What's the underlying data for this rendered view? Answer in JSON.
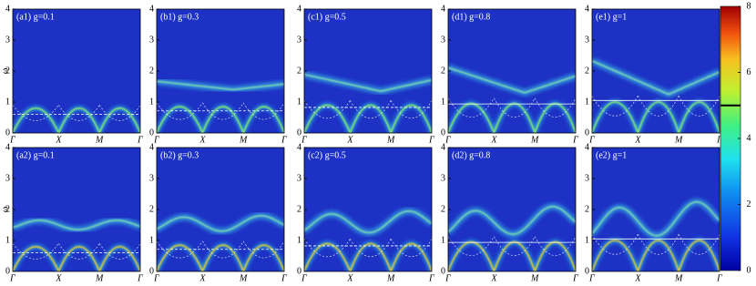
{
  "chart_data": {
    "type": "heatmap",
    "ylabel": "ω",
    "ylim": [
      0,
      4
    ],
    "yticks": [
      0,
      1,
      2,
      3,
      4
    ],
    "categories": [
      "Γ",
      "X",
      "M",
      "Γ"
    ],
    "panels": [
      {
        "title": "(a1) g=0.1"
      },
      {
        "title": "(b1) g=0.3"
      },
      {
        "title": "(c1) g=0.5"
      },
      {
        "title": "(d1) g=0.8"
      },
      {
        "title": "(e1) g=1"
      },
      {
        "title": "(a2) g=0.1"
      },
      {
        "title": "(b2) g=0.3"
      },
      {
        "title": "(c2) g=0.5"
      },
      {
        "title": "(d2) g=0.8"
      },
      {
        "title": "(e2) g=1"
      }
    ],
    "colorbar": {
      "lim": [
        0,
        8
      ],
      "ticks": [
        0,
        2,
        4,
        6,
        8
      ],
      "marker": 5
    }
  }
}
